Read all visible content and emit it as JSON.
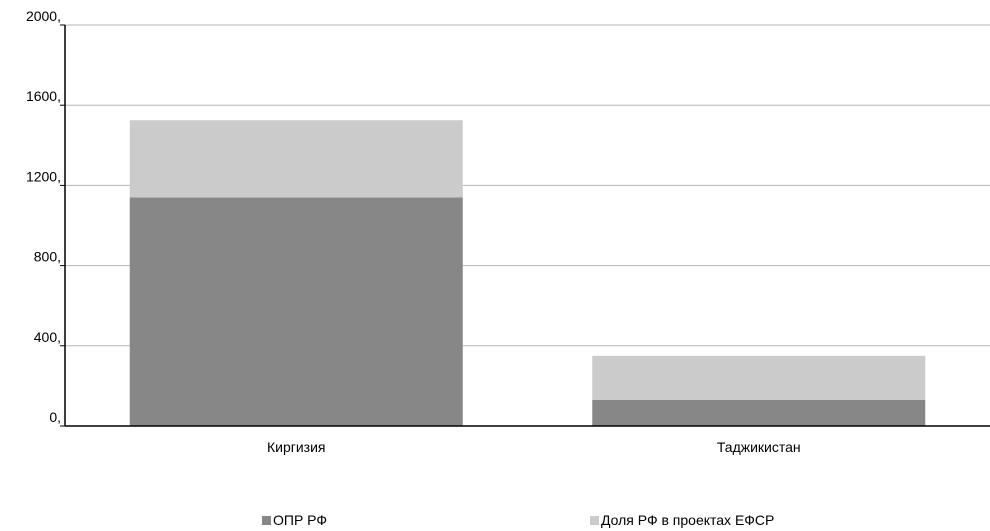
{
  "chart_data": {
    "type": "bar",
    "stacked": true,
    "categories": [
      "Киргизия",
      "Таджикистан"
    ],
    "series": [
      {
        "name": "ОПР РФ",
        "values": [
          1140,
          130
        ],
        "color": "#878787"
      },
      {
        "name": "Доля РФ в проектах ЕФСР",
        "values": [
          385,
          220
        ],
        "color": "#cbcbcb"
      }
    ],
    "y_ticks": [
      "0,",
      "400,",
      "800,",
      "1200,",
      "1600,",
      "2000,"
    ],
    "ylim": [
      0,
      2000
    ],
    "grid": true,
    "legend_position": "bottom"
  }
}
